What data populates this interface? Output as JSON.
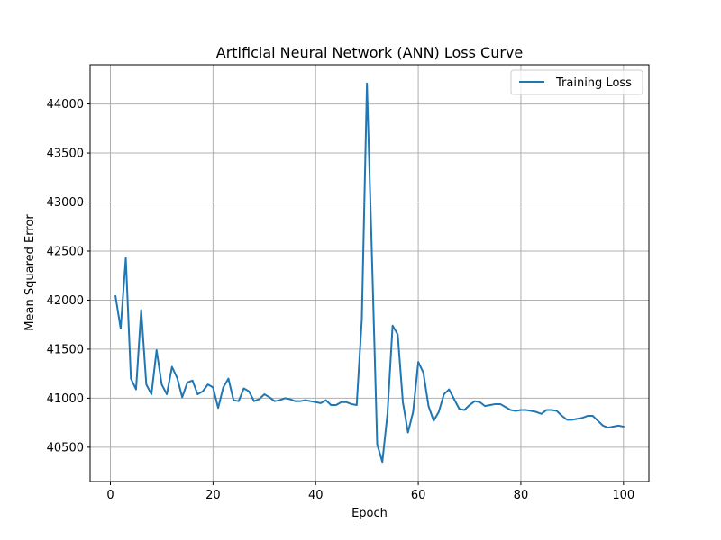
{
  "chart_data": {
    "type": "line",
    "title": "Artificial Neural Network (ANN) Loss Curve",
    "xlabel": "Epoch",
    "ylabel": "Mean Squared Error",
    "xlim": [
      -3.95,
      104.95
    ],
    "ylim": [
      40150,
      44400
    ],
    "xticks": [
      0,
      20,
      40,
      60,
      80,
      100
    ],
    "yticks": [
      40500,
      41000,
      41500,
      42000,
      42500,
      43000,
      43500,
      44000
    ],
    "grid": true,
    "legend_position": "top-right",
    "series": [
      {
        "name": "Training Loss",
        "color": "#1f77b4",
        "x": [
          1,
          2,
          3,
          4,
          5,
          6,
          7,
          8,
          9,
          10,
          11,
          12,
          13,
          14,
          15,
          16,
          17,
          18,
          19,
          20,
          21,
          22,
          23,
          24,
          25,
          26,
          27,
          28,
          29,
          30,
          31,
          32,
          33,
          34,
          35,
          36,
          37,
          38,
          39,
          40,
          41,
          42,
          43,
          44,
          45,
          46,
          47,
          48,
          49,
          50,
          51,
          52,
          53,
          54,
          55,
          56,
          57,
          58,
          59,
          60,
          61,
          62,
          63,
          64,
          65,
          66,
          67,
          68,
          69,
          70,
          71,
          72,
          73,
          74,
          75,
          76,
          77,
          78,
          79,
          80,
          81,
          82,
          83,
          84,
          85,
          86,
          87,
          88,
          89,
          90,
          91,
          92,
          93,
          94,
          95,
          96,
          97,
          98,
          99,
          100
        ],
        "y": [
          42040,
          41710,
          42430,
          41200,
          41090,
          41900,
          41140,
          41040,
          41490,
          41140,
          41040,
          41320,
          41210,
          41010,
          41160,
          41180,
          41040,
          41070,
          41140,
          41110,
          40900,
          41110,
          41200,
          40980,
          40970,
          41100,
          41070,
          40970,
          40990,
          41040,
          41010,
          40970,
          40980,
          41000,
          40990,
          40970,
          40970,
          40980,
          40970,
          40960,
          40950,
          40980,
          40930,
          40930,
          40960,
          40960,
          40940,
          40930,
          41800,
          44210,
          42400,
          40530,
          40350,
          40840,
          41740,
          41650,
          40960,
          40650,
          40860,
          41370,
          41260,
          40920,
          40770,
          40860,
          41040,
          41090,
          40990,
          40890,
          40880,
          40930,
          40970,
          40960,
          40920,
          40930,
          40940,
          40940,
          40910,
          40880,
          40870,
          40880,
          40880,
          40870,
          40860,
          40840,
          40880,
          40880,
          40870,
          40820,
          40780,
          40780,
          40790,
          40800,
          40820,
          40820,
          40770,
          40720,
          40700,
          40710,
          40720,
          40710
        ]
      }
    ]
  }
}
